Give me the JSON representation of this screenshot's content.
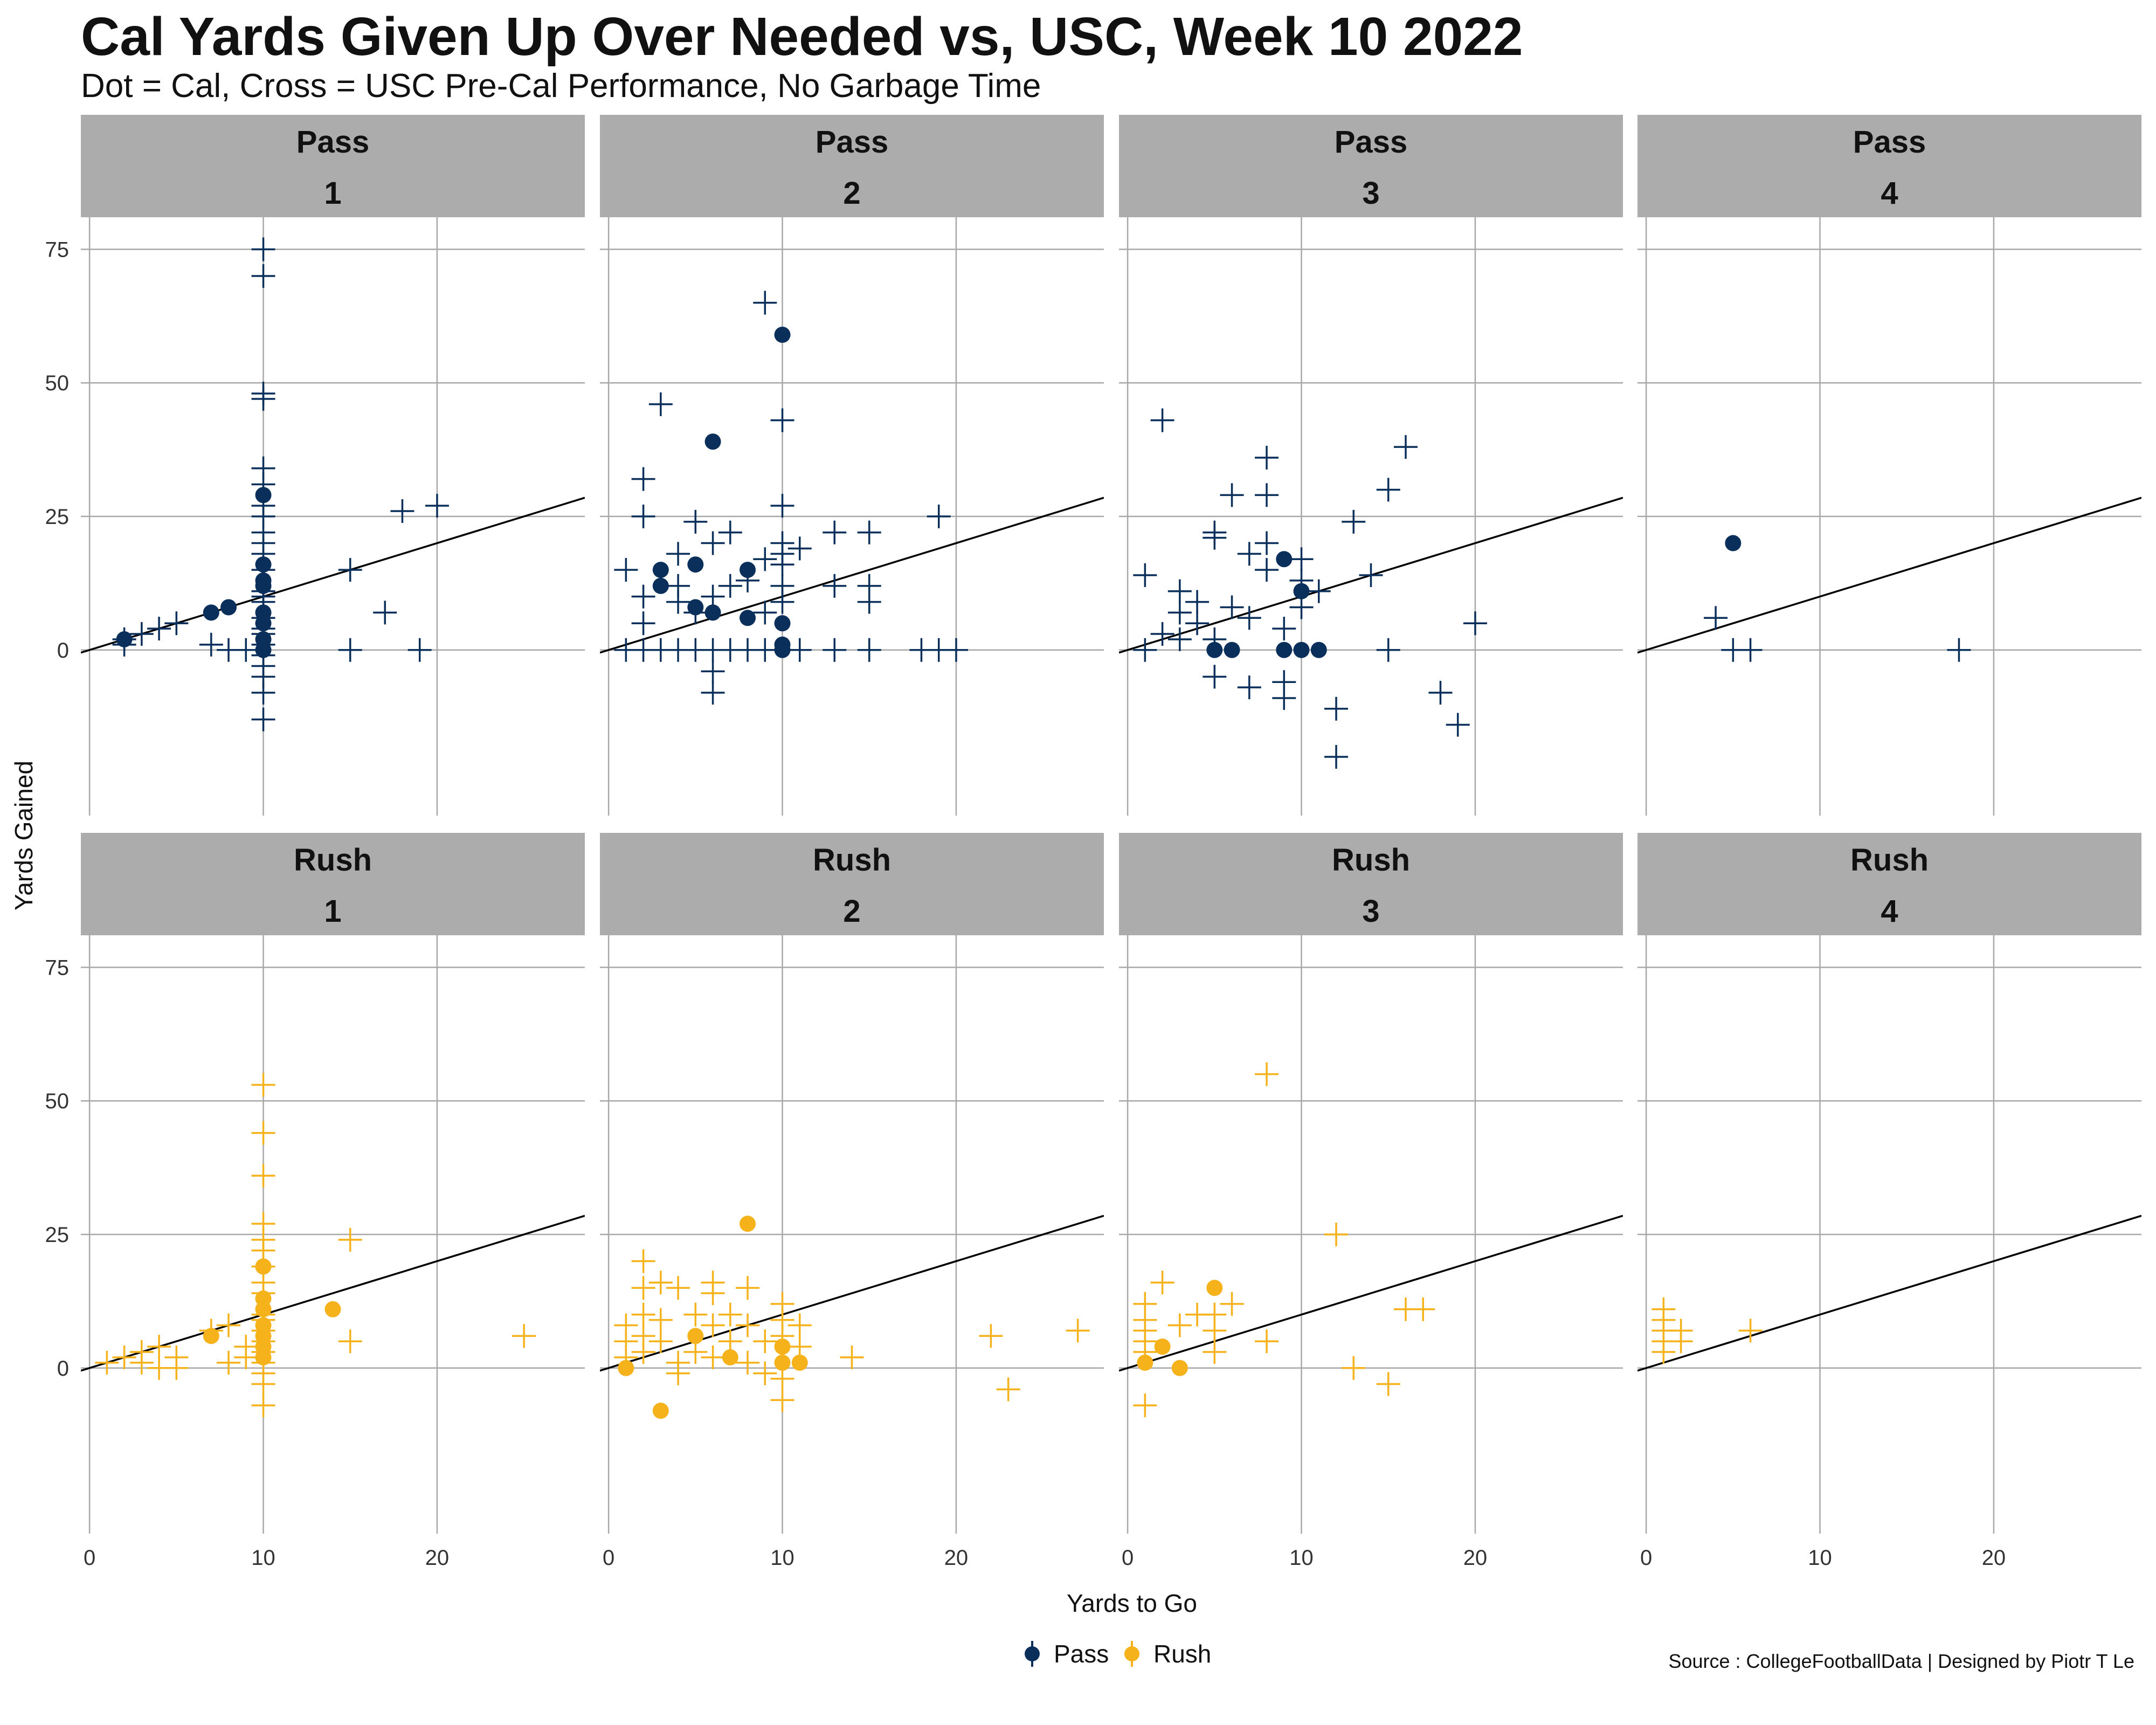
{
  "chart_data": {
    "type": "scatter",
    "title": "Cal Yards Given Up Over Needed vs, USC, Week 10 2022",
    "subtitle": "Dot = Cal, Cross = USC Pre-Cal Performance, No Garbage Time",
    "xlabel": "Yards to Go",
    "ylabel": "Yards Gained",
    "xlim": [
      -0.5,
      28.5
    ],
    "ylim": [
      -31,
      81
    ],
    "x_ticks": [
      0,
      10,
      20
    ],
    "y_ticks": [
      0,
      25,
      50,
      75
    ],
    "grid": true,
    "reference_line": {
      "slope": 1,
      "intercept": 0
    },
    "legend": {
      "placement": "bottom",
      "items": [
        {
          "label": "Pass",
          "color": "#0b2f5b"
        },
        {
          "label": "Rush",
          "color": "#f5b21b"
        }
      ]
    },
    "caption": "Source : CollegeFootballData | Designed by Piotr T Le",
    "colors": {
      "Pass": "#0b2f5b",
      "Rush": "#f5b21b",
      "strip": "#acacac",
      "grid": "#a8a8a8"
    },
    "panels": [
      {
        "type": "Pass",
        "down": "1",
        "cal_points": [
          [
            2,
            2
          ],
          [
            7,
            7
          ],
          [
            8,
            8
          ],
          [
            10,
            29
          ],
          [
            10,
            16
          ],
          [
            10,
            13
          ],
          [
            10,
            12
          ],
          [
            10,
            7
          ],
          [
            10,
            5
          ],
          [
            10,
            2
          ],
          [
            10,
            0
          ]
        ],
        "usc_points": [
          [
            2,
            1
          ],
          [
            2,
            2
          ],
          [
            3,
            3
          ],
          [
            4,
            4
          ],
          [
            5,
            5
          ],
          [
            7,
            1
          ],
          [
            8,
            0
          ],
          [
            9,
            0
          ],
          [
            10,
            75
          ],
          [
            10,
            70
          ],
          [
            10,
            48
          ],
          [
            10,
            47
          ],
          [
            10,
            34
          ],
          [
            10,
            31
          ],
          [
            10,
            27
          ],
          [
            10,
            25
          ],
          [
            10,
            22
          ],
          [
            10,
            20
          ],
          [
            10,
            18
          ],
          [
            10,
            15
          ],
          [
            10,
            11
          ],
          [
            10,
            10
          ],
          [
            10,
            9
          ],
          [
            10,
            6
          ],
          [
            10,
            4
          ],
          [
            10,
            3
          ],
          [
            10,
            1
          ],
          [
            10,
            -1
          ],
          [
            10,
            -3
          ],
          [
            10,
            -5
          ],
          [
            10,
            -8
          ],
          [
            10,
            -13
          ],
          [
            15,
            15
          ],
          [
            15,
            0
          ],
          [
            17,
            7
          ],
          [
            18,
            26
          ],
          [
            19,
            0
          ],
          [
            20,
            27
          ]
        ]
      },
      {
        "type": "Pass",
        "down": "2",
        "cal_points": [
          [
            10,
            59
          ],
          [
            6,
            39
          ],
          [
            3,
            15
          ],
          [
            3,
            12
          ],
          [
            5,
            16
          ],
          [
            5,
            8
          ],
          [
            6,
            7
          ],
          [
            8,
            15
          ],
          [
            8,
            6
          ],
          [
            10,
            5
          ],
          [
            10,
            1
          ],
          [
            10,
            0
          ]
        ],
        "usc_points": [
          [
            9,
            65
          ],
          [
            3,
            46
          ],
          [
            10,
            43
          ],
          [
            2,
            32
          ],
          [
            2,
            25
          ],
          [
            10,
            27
          ],
          [
            5,
            24
          ],
          [
            7,
            22
          ],
          [
            19,
            25
          ],
          [
            13,
            22
          ],
          [
            15,
            22
          ],
          [
            6,
            20
          ],
          [
            9,
            17
          ],
          [
            10,
            20
          ],
          [
            10,
            18
          ],
          [
            11,
            19
          ],
          [
            1,
            15
          ],
          [
            4,
            18
          ],
          [
            10,
            16
          ],
          [
            13,
            12
          ],
          [
            15,
            12
          ],
          [
            2,
            10
          ],
          [
            4,
            12
          ],
          [
            4,
            9
          ],
          [
            15,
            9
          ],
          [
            6,
            10
          ],
          [
            7,
            12
          ],
          [
            8,
            13
          ],
          [
            2,
            5
          ],
          [
            5,
            7
          ],
          [
            9,
            7
          ],
          [
            10,
            12
          ],
          [
            10,
            9
          ],
          [
            1,
            0
          ],
          [
            2,
            0
          ],
          [
            3,
            0
          ],
          [
            4,
            0
          ],
          [
            5,
            0
          ],
          [
            6,
            0
          ],
          [
            7,
            0
          ],
          [
            8,
            0
          ],
          [
            9,
            0
          ],
          [
            11,
            0
          ],
          [
            13,
            0
          ],
          [
            15,
            0
          ],
          [
            18,
            0
          ],
          [
            19,
            0
          ],
          [
            20,
            0
          ],
          [
            6,
            -4
          ],
          [
            6,
            -8
          ]
        ]
      },
      {
        "type": "Pass",
        "down": "3",
        "cal_points": [
          [
            9,
            17
          ],
          [
            10,
            11
          ],
          [
            5,
            0
          ],
          [
            6,
            0
          ],
          [
            9,
            0
          ],
          [
            10,
            0
          ],
          [
            11,
            0
          ]
        ],
        "usc_points": [
          [
            2,
            43
          ],
          [
            8,
            36
          ],
          [
            16,
            38
          ],
          [
            6,
            29
          ],
          [
            8,
            29
          ],
          [
            15,
            30
          ],
          [
            5,
            22
          ],
          [
            5,
            21
          ],
          [
            13,
            24
          ],
          [
            1,
            14
          ],
          [
            3,
            11
          ],
          [
            4,
            9
          ],
          [
            8,
            20
          ],
          [
            7,
            18
          ],
          [
            8,
            15
          ],
          [
            10,
            17
          ],
          [
            10,
            13
          ],
          [
            11,
            11
          ],
          [
            14,
            14
          ],
          [
            3,
            7
          ],
          [
            4,
            5
          ],
          [
            6,
            8
          ],
          [
            7,
            6
          ],
          [
            10,
            8
          ],
          [
            2,
            3
          ],
          [
            3,
            2
          ],
          [
            5,
            2
          ],
          [
            1,
            0
          ],
          [
            15,
            0
          ],
          [
            20,
            5
          ],
          [
            9,
            4
          ],
          [
            5,
            -5
          ],
          [
            7,
            -7
          ],
          [
            9,
            -6
          ],
          [
            9,
            -9
          ],
          [
            12,
            -11
          ],
          [
            18,
            -8
          ],
          [
            19,
            -14
          ],
          [
            12,
            -20
          ]
        ]
      },
      {
        "type": "Pass",
        "down": "4",
        "cal_points": [
          [
            5,
            20
          ]
        ],
        "usc_points": [
          [
            4,
            6
          ],
          [
            5,
            0
          ],
          [
            6,
            0
          ],
          [
            18,
            0
          ]
        ]
      },
      {
        "type": "Rush",
        "down": "1",
        "cal_points": [
          [
            7,
            6
          ],
          [
            10,
            19
          ],
          [
            10,
            13
          ],
          [
            10,
            11
          ],
          [
            10,
            8
          ],
          [
            10,
            6
          ],
          [
            10,
            4
          ],
          [
            10,
            2
          ],
          [
            14,
            11
          ]
        ],
        "usc_points": [
          [
            1,
            1
          ],
          [
            2,
            2
          ],
          [
            3,
            1
          ],
          [
            3,
            3
          ],
          [
            4,
            0
          ],
          [
            4,
            4
          ],
          [
            5,
            0
          ],
          [
            5,
            2
          ],
          [
            7,
            7
          ],
          [
            8,
            1
          ],
          [
            8,
            8
          ],
          [
            9,
            4
          ],
          [
            9,
            2
          ],
          [
            10,
            53
          ],
          [
            10,
            44
          ],
          [
            10,
            36
          ],
          [
            10,
            27
          ],
          [
            10,
            24
          ],
          [
            10,
            22
          ],
          [
            10,
            19
          ],
          [
            10,
            16
          ],
          [
            10,
            14
          ],
          [
            10,
            10
          ],
          [
            10,
            9
          ],
          [
            10,
            7
          ],
          [
            10,
            5
          ],
          [
            10,
            3
          ],
          [
            10,
            1
          ],
          [
            10,
            -1
          ],
          [
            10,
            -3
          ],
          [
            10,
            -7
          ],
          [
            15,
            24
          ],
          [
            15,
            5
          ],
          [
            25,
            6
          ]
        ]
      },
      {
        "type": "Rush",
        "down": "2",
        "cal_points": [
          [
            8,
            27
          ],
          [
            5,
            6
          ],
          [
            7,
            2
          ],
          [
            10,
            4
          ],
          [
            10,
            1
          ],
          [
            11,
            1
          ],
          [
            1,
            0
          ],
          [
            3,
            -8
          ]
        ],
        "usc_points": [
          [
            2,
            20
          ],
          [
            2,
            15
          ],
          [
            3,
            16
          ],
          [
            4,
            15
          ],
          [
            6,
            16
          ],
          [
            6,
            14
          ],
          [
            8,
            15
          ],
          [
            1,
            8
          ],
          [
            1,
            5
          ],
          [
            1,
            2
          ],
          [
            2,
            10
          ],
          [
            2,
            6
          ],
          [
            2,
            3
          ],
          [
            3,
            9
          ],
          [
            3,
            5
          ],
          [
            4,
            1
          ],
          [
            4,
            -1
          ],
          [
            5,
            10
          ],
          [
            5,
            3
          ],
          [
            6,
            8
          ],
          [
            6,
            2
          ],
          [
            7,
            5
          ],
          [
            7,
            10
          ],
          [
            8,
            8
          ],
          [
            8,
            1
          ],
          [
            9,
            5
          ],
          [
            9,
            -1
          ],
          [
            10,
            12
          ],
          [
            10,
            9
          ],
          [
            10,
            6
          ],
          [
            10,
            -2
          ],
          [
            10,
            -6
          ],
          [
            11,
            8
          ],
          [
            11,
            4
          ],
          [
            14,
            2
          ],
          [
            22,
            6
          ],
          [
            23,
            -4
          ],
          [
            27,
            7
          ]
        ]
      },
      {
        "type": "Rush",
        "down": "3",
        "cal_points": [
          [
            5,
            15
          ],
          [
            2,
            4
          ],
          [
            1,
            1
          ],
          [
            3,
            0
          ]
        ],
        "usc_points": [
          [
            8,
            55
          ],
          [
            12,
            25
          ],
          [
            2,
            16
          ],
          [
            6,
            12
          ],
          [
            1,
            12
          ],
          [
            1,
            9
          ],
          [
            1,
            7
          ],
          [
            1,
            5
          ],
          [
            1,
            3
          ],
          [
            1,
            -7
          ],
          [
            3,
            8
          ],
          [
            4,
            10
          ],
          [
            5,
            10
          ],
          [
            5,
            7
          ],
          [
            5,
            3
          ],
          [
            8,
            5
          ],
          [
            16,
            11
          ],
          [
            17,
            11
          ],
          [
            13,
            0
          ],
          [
            15,
            -3
          ]
        ]
      },
      {
        "type": "Rush",
        "down": "4",
        "cal_points": [],
        "usc_points": [
          [
            1,
            11
          ],
          [
            1,
            9
          ],
          [
            1,
            7
          ],
          [
            1,
            5
          ],
          [
            1,
            3
          ],
          [
            2,
            7
          ],
          [
            2,
            5
          ],
          [
            6,
            7
          ]
        ]
      }
    ]
  }
}
